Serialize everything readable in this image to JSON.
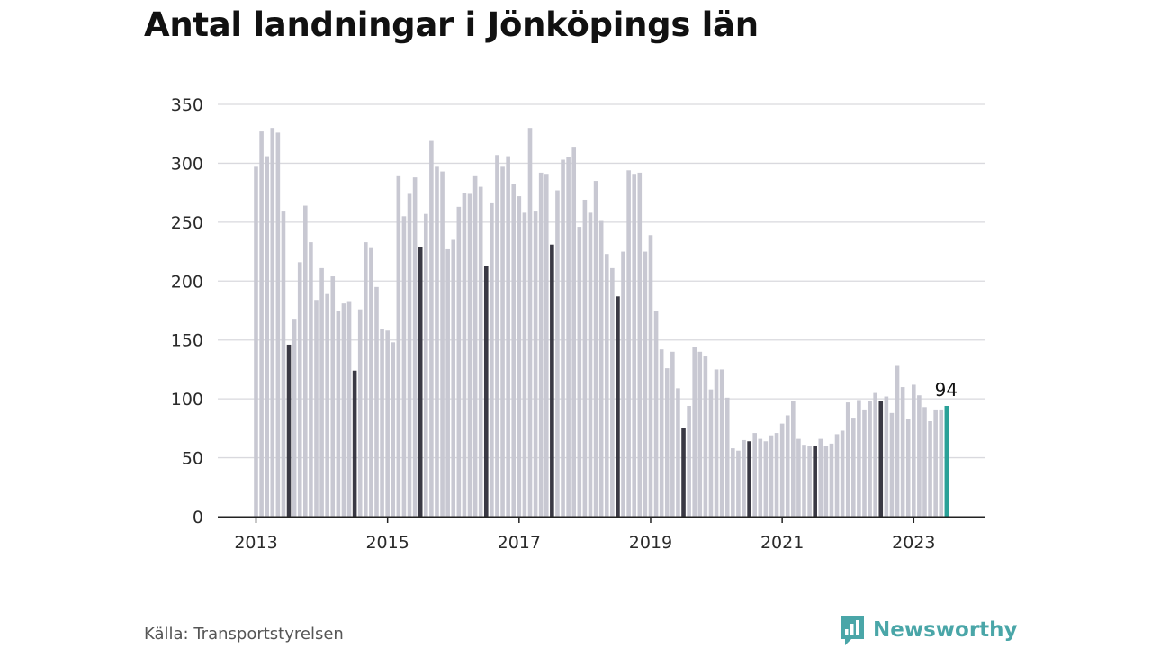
{
  "title": "Antal landningar i Jönköpings län",
  "source": "Källa: Transportstyrelsen",
  "brand": {
    "name": "Newsworthy",
    "icon": "newsworthy-logo-icon",
    "color": "#4aa6a8"
  },
  "colors": {
    "bar": "#c8c8d2",
    "july": "#3a3944",
    "latest": "#2aa198",
    "grid": "#d9d9de",
    "axis": "#222222"
  },
  "chart_data": {
    "type": "bar",
    "title": "Antal landningar i Jönköpings län",
    "xlabel": "",
    "ylabel": "",
    "ylim": [
      0,
      350
    ],
    "yticks": [
      0,
      50,
      100,
      150,
      200,
      250,
      300,
      350
    ],
    "xticks": [
      "2013",
      "2015",
      "2017",
      "2019",
      "2021",
      "2023"
    ],
    "start": "2013-01",
    "end": "2023-07",
    "highlight_month": "July (dark bars)",
    "latest_label": "94",
    "grid": true,
    "legend": "none",
    "values": [
      297,
      327,
      306,
      330,
      326,
      259,
      146,
      168,
      216,
      264,
      233,
      184,
      211,
      189,
      204,
      175,
      181,
      183,
      124,
      176,
      233,
      228,
      195,
      159,
      158,
      148,
      289,
      255,
      274,
      288,
      229,
      257,
      319,
      297,
      293,
      227,
      235,
      263,
      275,
      274,
      289,
      280,
      213,
      266,
      307,
      297,
      306,
      282,
      272,
      258,
      330,
      259,
      292,
      291,
      231,
      277,
      303,
      305,
      314,
      246,
      269,
      258,
      285,
      251,
      223,
      211,
      187,
      225,
      294,
      291,
      292,
      225,
      239,
      175,
      142,
      126,
      140,
      109,
      75,
      94,
      144,
      140,
      136,
      108,
      125,
      125,
      101,
      58,
      56,
      65,
      64,
      71,
      66,
      64,
      69,
      71,
      79,
      86,
      98,
      66,
      61,
      60,
      60,
      66,
      60,
      62,
      70,
      73,
      97,
      84,
      99,
      91,
      98,
      105,
      98,
      102,
      88,
      128,
      110,
      83,
      112,
      103,
      93,
      81,
      91,
      91,
      94
    ]
  }
}
